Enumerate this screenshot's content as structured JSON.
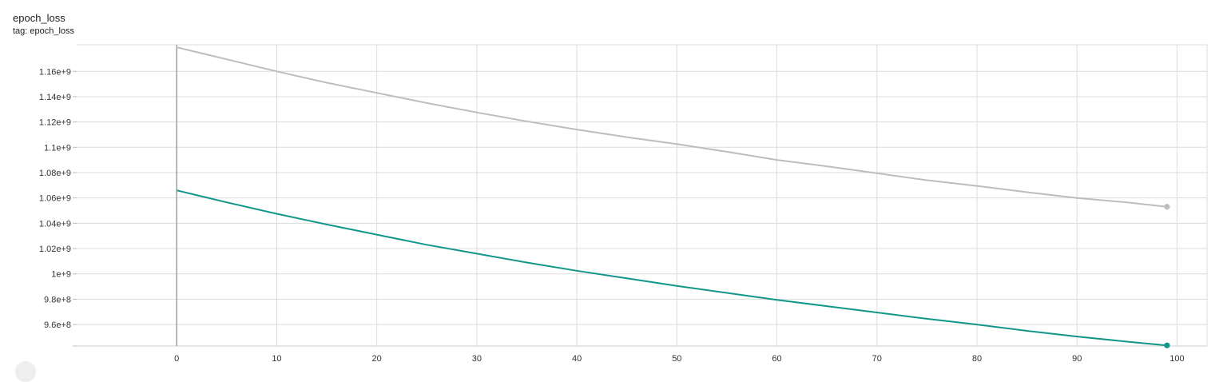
{
  "card": {
    "title": "epoch_loss",
    "tag": "tag: epoch_loss"
  },
  "chart_data": {
    "type": "line",
    "xlim": [
      -10,
      103
    ],
    "ylim": [
      943000000,
      1181000000
    ],
    "x_ticks": [
      0,
      10,
      20,
      30,
      40,
      50,
      60,
      70,
      80,
      90,
      100
    ],
    "x_tick_labels": [
      "0",
      "10",
      "20",
      "30",
      "40",
      "50",
      "60",
      "70",
      "80",
      "90",
      "100"
    ],
    "y_ticks": [
      960000000,
      980000000,
      1000000000,
      1020000000,
      1040000000,
      1060000000,
      1080000000,
      1100000000,
      1120000000,
      1140000000,
      1160000000
    ],
    "y_tick_labels": [
      "9.6e+8",
      "9.8e+8",
      "1e+9",
      "1.02e+9",
      "1.04e+9",
      "1.06e+9",
      "1.08e+9",
      "1.1e+9",
      "1.12e+9",
      "1.14e+9",
      "1.16e+9"
    ],
    "grid": true,
    "series": [
      {
        "color": "#bdbdbd",
        "x": [
          0,
          5,
          10,
          15,
          20,
          25,
          30,
          35,
          40,
          45,
          50,
          55,
          60,
          65,
          70,
          75,
          80,
          85,
          90,
          95,
          99
        ],
        "y": [
          1179000000,
          1169500000,
          1160000000,
          1151000000,
          1143000000,
          1135000000,
          1127500000,
          1120500000,
          1114000000,
          1108000000,
          1102500000,
          1096500000,
          1090000000,
          1085000000,
          1079500000,
          1074000000,
          1069500000,
          1064500000,
          1060000000,
          1056500000,
          1053000000
        ]
      },
      {
        "color": "#12968a",
        "x": [
          0,
          5,
          10,
          15,
          20,
          25,
          30,
          35,
          40,
          45,
          50,
          55,
          60,
          65,
          70,
          75,
          80,
          85,
          90,
          95,
          99
        ],
        "y": [
          1066000000,
          1056500000,
          1047500000,
          1039000000,
          1031000000,
          1023000000,
          1016000000,
          1009000000,
          1002500000,
          996500000,
          990500000,
          985000000,
          979500000,
          974500000,
          969500000,
          964500000,
          960000000,
          955000000,
          950500000,
          946500000,
          943500000
        ]
      }
    ]
  }
}
